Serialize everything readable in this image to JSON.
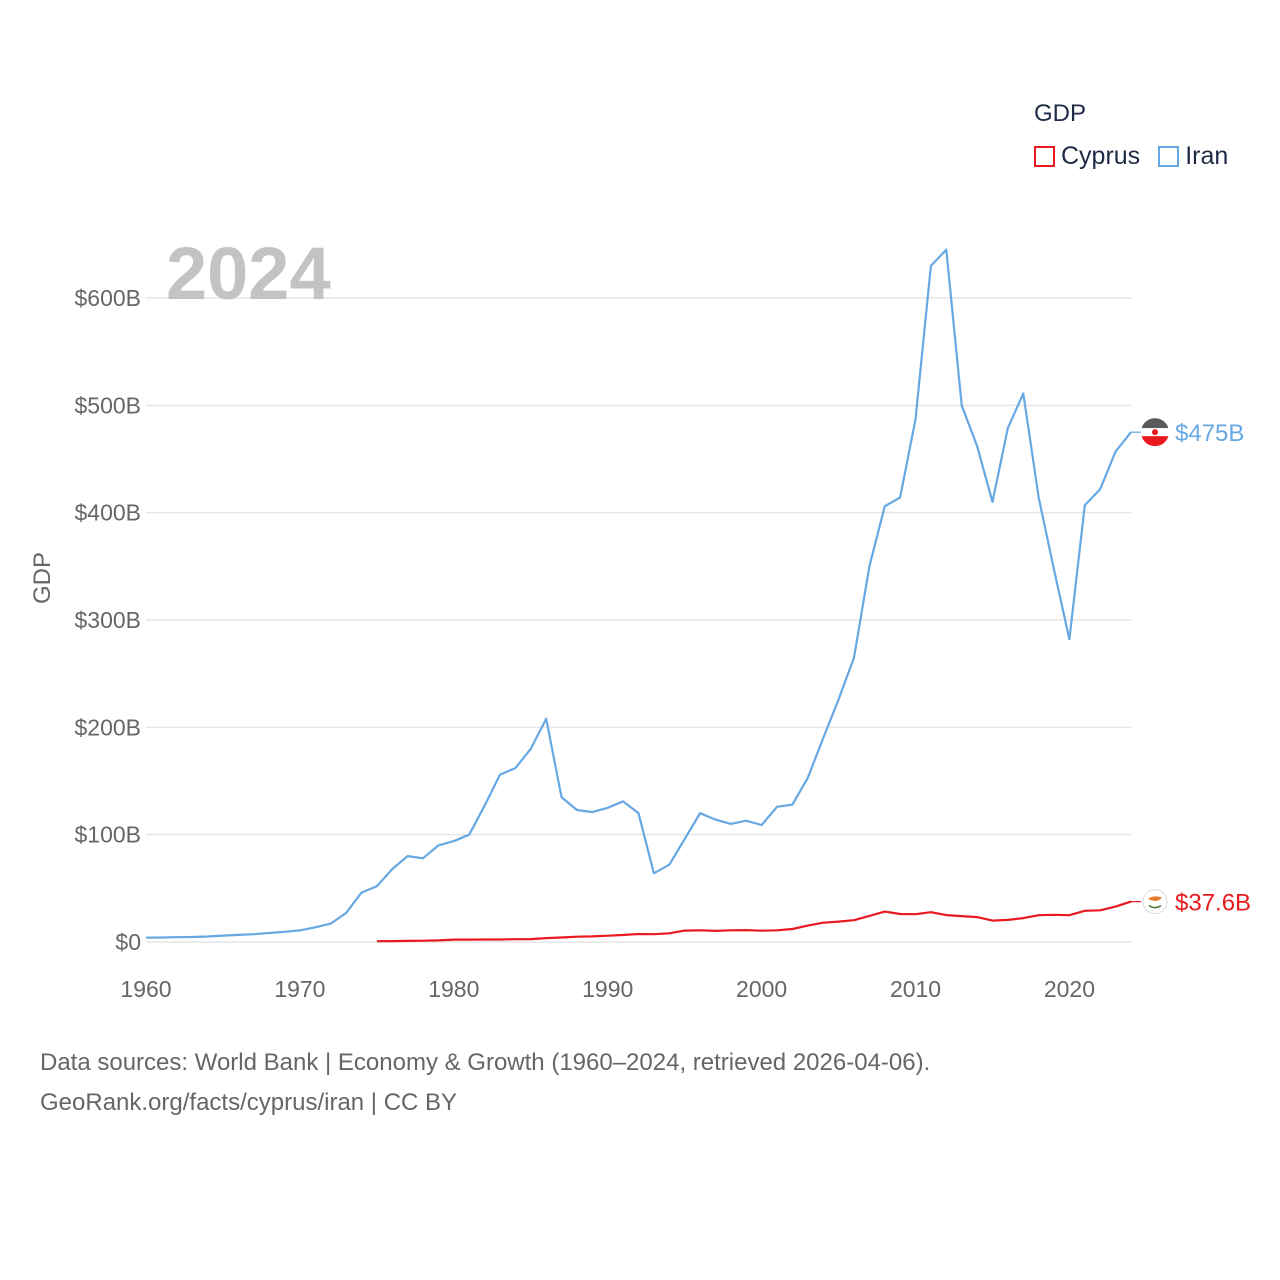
{
  "legend": {
    "title": "GDP",
    "items": [
      {
        "name": "Cyprus",
        "color": "#e8191f"
      },
      {
        "name": "Iran",
        "color": "#66a8e3"
      }
    ]
  },
  "source": {
    "line1": "Data sources: World Bank | Economy & Growth (1960–2024, retrieved 2026-04-06).",
    "line2": "GeoRank.org/facts/cyprus/iran | CC BY"
  },
  "chart_data": {
    "type": "line",
    "year_label": "2024",
    "ylabel": "GDP",
    "xlim": [
      1960,
      2024
    ],
    "ylim": [
      0,
      600
    ],
    "y_unit": "billion USD",
    "x_ticks": [
      1960,
      1970,
      1980,
      1990,
      2000,
      2010,
      2020
    ],
    "x_tick_labels": [
      "1960",
      "1970",
      "1980",
      "1990",
      "2000",
      "2010",
      "2020"
    ],
    "y_ticks": [
      0,
      100,
      200,
      300,
      400,
      500,
      600
    ],
    "y_tick_labels": [
      "$0",
      "$100B",
      "$200B",
      "$300B",
      "$400B",
      "$500B",
      "$600B"
    ],
    "grid": true,
    "legend_position": "top-right",
    "series": [
      {
        "name": "Cyprus",
        "color": "#e8191f",
        "end_label": "$37.6B",
        "flag": "cyprus-flag",
        "x": [
          1975,
          1976,
          1977,
          1978,
          1979,
          1980,
          1981,
          1982,
          1983,
          1984,
          1985,
          1986,
          1987,
          1988,
          1989,
          1990,
          1991,
          1992,
          1993,
          1994,
          1995,
          1996,
          1997,
          1998,
          1999,
          2000,
          2001,
          2002,
          2003,
          2004,
          2005,
          2006,
          2007,
          2008,
          2009,
          2010,
          2011,
          2012,
          2013,
          2014,
          2015,
          2016,
          2017,
          2018,
          2019,
          2020,
          2021,
          2022,
          2023,
          2024
        ],
        "values": [
          0.7,
          0.8,
          1.0,
          1.2,
          1.5,
          2.2,
          2.2,
          2.3,
          2.3,
          2.6,
          2.7,
          3.6,
          4.2,
          4.9,
          5.2,
          5.9,
          6.5,
          7.5,
          7.3,
          8.1,
          10.6,
          10.9,
          10.3,
          10.9,
          11.1,
          10.5,
          10.9,
          12.1,
          15.3,
          18.0,
          19.0,
          20.3,
          24.3,
          28.3,
          26.1,
          25.9,
          27.8,
          25.1,
          24.1,
          23.2,
          19.9,
          20.6,
          22.3,
          25.0,
          25.3,
          25.0,
          29.1,
          29.5,
          33.0,
          37.6
        ]
      },
      {
        "name": "Iran",
        "color": "#66a8e3",
        "end_label": "$475B",
        "flag": "iran-flag",
        "x": [
          1960,
          1961,
          1962,
          1963,
          1964,
          1965,
          1966,
          1967,
          1968,
          1969,
          1970,
          1971,
          1972,
          1973,
          1974,
          1975,
          1976,
          1977,
          1978,
          1979,
          1980,
          1981,
          1982,
          1983,
          1984,
          1985,
          1986,
          1987,
          1988,
          1989,
          1990,
          1991,
          1992,
          1993,
          1994,
          1995,
          1996,
          1997,
          1998,
          1999,
          2000,
          2001,
          2002,
          2003,
          2004,
          2005,
          2006,
          2007,
          2008,
          2009,
          2010,
          2011,
          2012,
          2013,
          2014,
          2015,
          2016,
          2017,
          2018,
          2019,
          2020,
          2021,
          2022,
          2023,
          2024
        ],
        "values": [
          4,
          4.2,
          4.5,
          4.7,
          5.1,
          6,
          6.6,
          7.3,
          8.4,
          9.5,
          10.8,
          13.7,
          17.1,
          27,
          46,
          52,
          68,
          80,
          78,
          90,
          94,
          100,
          127,
          156,
          162,
          180,
          208,
          135,
          123,
          121,
          125,
          131,
          120,
          64,
          72,
          96,
          120,
          114,
          110,
          113,
          109,
          126,
          128,
          153,
          190,
          226,
          265,
          350,
          406,
          414,
          487,
          630,
          645,
          500,
          462,
          410,
          479,
          511,
          414,
          347,
          282,
          407,
          422,
          457,
          475
        ]
      }
    ]
  }
}
